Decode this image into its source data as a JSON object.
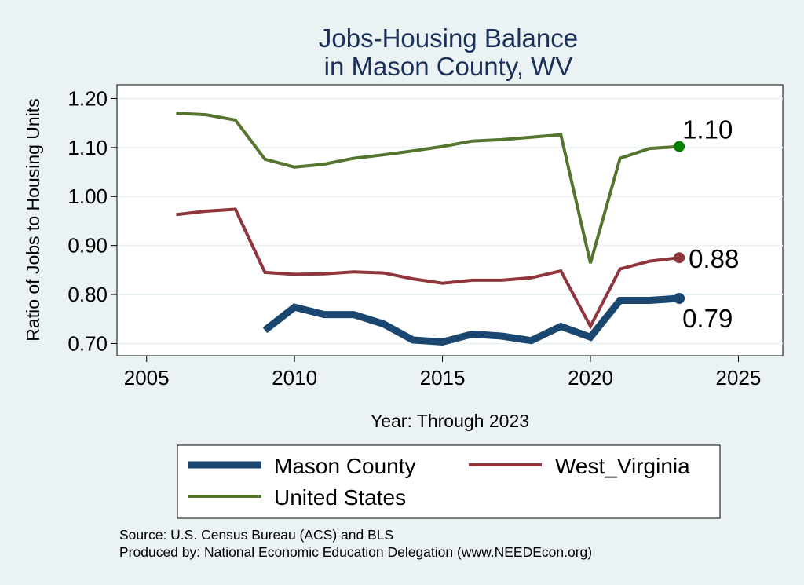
{
  "colors": {
    "background": "#eaf2f3",
    "plot_background": "#ffffff",
    "grid": "#eaf2f3",
    "title": "#1a2f5a",
    "mason": "#1a476f",
    "west_virginia": "#90353b",
    "united_states": "#55752f",
    "us_marker": "#008000"
  },
  "chart_data": {
    "type": "line",
    "title": [
      "Jobs-Housing Balance",
      "in Mason County, WV"
    ],
    "xlabel": "Year: Through 2023",
    "ylabel": "Ratio of Jobs to Housing Units",
    "xlim": [
      2004,
      2026.5
    ],
    "ylim": [
      0.675,
      1.228
    ],
    "x_ticks": [
      2005,
      2010,
      2015,
      2020,
      2025
    ],
    "y_ticks": [
      0.7,
      0.8,
      0.9,
      1.0,
      1.1,
      1.2
    ],
    "y_tick_labels": [
      "0.70",
      "0.80",
      "0.90",
      "1.00",
      "1.10",
      "1.20"
    ],
    "grid": true,
    "series": [
      {
        "name": "Mason County",
        "key": "mason",
        "x": [
          2009,
          2010,
          2011,
          2012,
          2013,
          2014,
          2015,
          2016,
          2017,
          2018,
          2019,
          2020,
          2021,
          2022,
          2023
        ],
        "values": [
          0.727,
          0.774,
          0.759,
          0.759,
          0.74,
          0.707,
          0.703,
          0.719,
          0.715,
          0.706,
          0.735,
          0.713,
          0.788,
          0.788,
          0.792
        ],
        "end_label": "0.79"
      },
      {
        "name": "West_Virginia",
        "key": "west_virginia",
        "x": [
          2006,
          2007,
          2008,
          2009,
          2010,
          2011,
          2012,
          2013,
          2014,
          2015,
          2016,
          2017,
          2018,
          2019,
          2020,
          2021,
          2022,
          2023
        ],
        "values": [
          0.963,
          0.97,
          0.974,
          0.845,
          0.841,
          0.842,
          0.846,
          0.844,
          0.832,
          0.823,
          0.829,
          0.829,
          0.834,
          0.848,
          0.735,
          0.852,
          0.868,
          0.875
        ],
        "end_label": "0.88"
      },
      {
        "name": "United States",
        "key": "united_states",
        "x": [
          2006,
          2007,
          2008,
          2009,
          2010,
          2011,
          2012,
          2013,
          2014,
          2015,
          2016,
          2017,
          2018,
          2019,
          2020,
          2021,
          2022,
          2023
        ],
        "values": [
          1.17,
          1.167,
          1.156,
          1.076,
          1.06,
          1.066,
          1.078,
          1.085,
          1.093,
          1.102,
          1.113,
          1.116,
          1.121,
          1.126,
          0.864,
          1.078,
          1.098,
          1.102
        ],
        "end_label": "1.10"
      }
    ],
    "legend": {
      "position": "bottom",
      "entries": [
        "Mason County",
        "West_Virginia",
        "United States"
      ]
    }
  },
  "source": {
    "line1": "Source: U.S. Census Bureau (ACS) and BLS",
    "line2": "Produced by: National Economic Education Delegation (www.NEEDEcon.org)"
  }
}
